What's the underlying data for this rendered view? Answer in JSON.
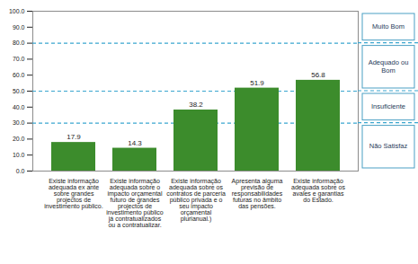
{
  "chart_data": {
    "type": "bar",
    "categories": [
      "Existe informação adequada ex ante sobre grandes projectos de investimento público.",
      "Existe informação adequada sobre o impacto orçamental futuro de grandes projectos de investimento público já contratualizados ou a contratualizar.",
      "Existe informação adequada sobre os contratos de parceria público privada e o seu impacto orçamental plurianual.)",
      "Apresenta alguma previsão de responsabilidades futuras no âmbito das pensões.",
      "Existe informação adequada sobre os avales e garantias do Estado."
    ],
    "values": [
      17.9,
      14.3,
      38.2,
      51.9,
      56.8
    ],
    "color": "#3c8c2c",
    "ylim": [
      0,
      100
    ],
    "yticks": [
      {
        "value": 0,
        "label": "0.0"
      },
      {
        "value": 10,
        "label": "10.0"
      },
      {
        "value": 20,
        "label": "20.0"
      },
      {
        "value": 30,
        "label": "30.0"
      },
      {
        "value": 40,
        "label": "40.0"
      },
      {
        "value": 50,
        "label": "50.0"
      },
      {
        "value": 60,
        "label": "60.0"
      },
      {
        "value": 70,
        "label": "70.0"
      },
      {
        "value": 80,
        "label": "80.0"
      },
      {
        "value": 90,
        "label": "90.0"
      },
      {
        "value": 100,
        "label": "100.0"
      }
    ],
    "grid": false,
    "data_labels": true,
    "bands": [
      {
        "label": "Muito Bom",
        "from": 80,
        "to": 100
      },
      {
        "label": "Adequado ou Bom",
        "from": 50,
        "to": 80
      },
      {
        "label": "Insuficiente",
        "from": 30,
        "to": 50
      },
      {
        "label": "Não Satisfaz",
        "from": 0,
        "to": 30
      }
    ]
  }
}
